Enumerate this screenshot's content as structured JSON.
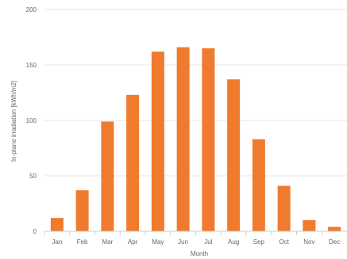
{
  "chart_data": {
    "type": "bar",
    "categories": [
      "Jan",
      "Feb",
      "Mar",
      "Apr",
      "May",
      "Jun",
      "Jul",
      "Aug",
      "Sep",
      "Oct",
      "Nov",
      "Dec"
    ],
    "series": [
      {
        "values": [
          12,
          37,
          99,
          123,
          162,
          166,
          165,
          137,
          83,
          41,
          10,
          4
        ],
        "color": "#f07b2e"
      }
    ],
    "title": "",
    "xlabel": "Month",
    "ylabel": "In-plane irradiation [kWh/m2]",
    "ylim": [
      0,
      200
    ],
    "yticks": [
      0,
      50,
      100,
      150,
      200
    ],
    "grid": true,
    "gridColor": "#e6e6e6",
    "axisColor": "#cccccc",
    "legend": "none"
  }
}
